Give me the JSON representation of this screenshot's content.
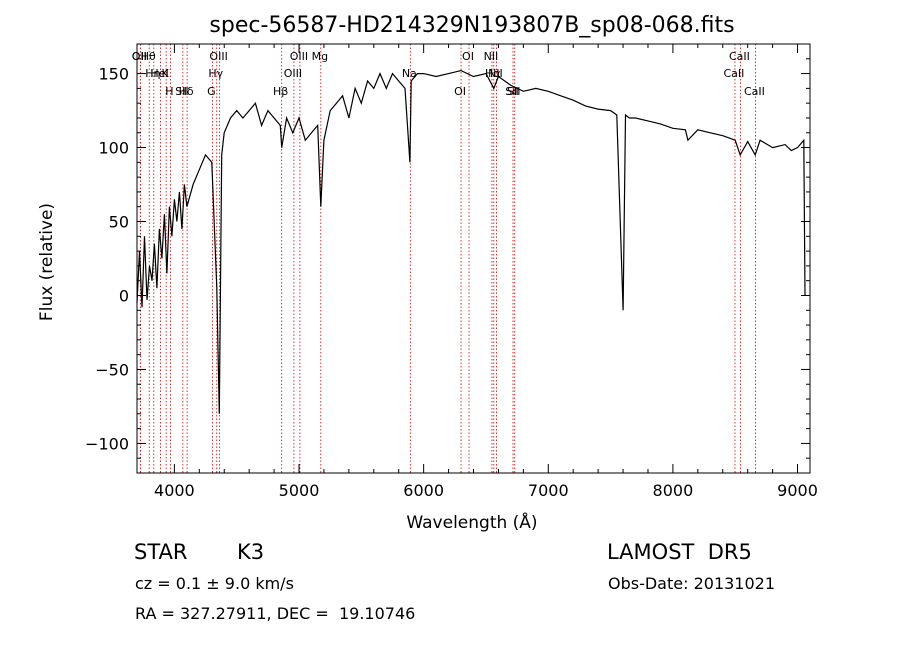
{
  "chart_data": {
    "type": "line",
    "title": "spec-56587-HD214329N193807B_sp08-068.fits",
    "xlabel": "Wavelength (Å)",
    "ylabel": "Flux (relative)",
    "xlim": [
      3700,
      9100
    ],
    "ylim": [
      -120,
      170
    ],
    "xticks": [
      4000,
      5000,
      6000,
      7000,
      8000,
      9000
    ],
    "yticks": [
      -100,
      -50,
      0,
      50,
      100,
      150
    ],
    "grid": false,
    "line_color": "#000000",
    "marker_color": "#cc0000",
    "spectrum": {
      "x": [
        3700,
        3720,
        3740,
        3760,
        3780,
        3800,
        3820,
        3840,
        3860,
        3880,
        3900,
        3920,
        3940,
        3960,
        3980,
        4000,
        4020,
        4040,
        4060,
        4080,
        4100,
        4150,
        4200,
        4250,
        4300,
        4340,
        4360,
        4380,
        4400,
        4450,
        4500,
        4550,
        4600,
        4650,
        4700,
        4750,
        4800,
        4850,
        4861,
        4900,
        4950,
        5000,
        5050,
        5100,
        5150,
        5175,
        5200,
        5250,
        5300,
        5350,
        5400,
        5450,
        5500,
        5550,
        5600,
        5650,
        5700,
        5750,
        5800,
        5850,
        5890,
        5900,
        5950,
        6000,
        6100,
        6200,
        6300,
        6400,
        6500,
        6563,
        6600,
        6700,
        6800,
        6900,
        7000,
        7100,
        7200,
        7300,
        7400,
        7500,
        7550,
        7600,
        7620,
        7650,
        7700,
        7800,
        7900,
        8000,
        8100,
        8120,
        8200,
        8300,
        8400,
        8500,
        8540,
        8600,
        8660,
        8700,
        8800,
        8900,
        8950,
        9000,
        9050,
        9060
      ],
      "y": [
        -5,
        30,
        -8,
        40,
        -3,
        20,
        10,
        35,
        5,
        45,
        25,
        55,
        15,
        60,
        40,
        65,
        50,
        70,
        45,
        75,
        60,
        75,
        85,
        95,
        90,
        5,
        -80,
        95,
        110,
        120,
        125,
        120,
        125,
        130,
        115,
        125,
        120,
        115,
        100,
        120,
        110,
        120,
        105,
        110,
        115,
        60,
        105,
        125,
        130,
        135,
        120,
        140,
        130,
        145,
        140,
        150,
        140,
        150,
        145,
        140,
        90,
        145,
        150,
        150,
        148,
        150,
        152,
        148,
        150,
        140,
        148,
        142,
        138,
        140,
        138,
        135,
        132,
        128,
        126,
        125,
        122,
        -10,
        122,
        120,
        120,
        118,
        116,
        113,
        112,
        105,
        112,
        110,
        108,
        105,
        95,
        104,
        95,
        105,
        100,
        102,
        98,
        100,
        105,
        0
      ]
    },
    "line_labels": [
      {
        "text": "Hθ",
        "x": 3798
      },
      {
        "text": "K",
        "x": 3934
      },
      {
        "text": "Hδ",
        "x": 4102
      },
      {
        "text": "OII",
        "x": 3727
      },
      {
        "text": "HeI",
        "x": 3889
      },
      {
        "text": "SII",
        "x": 4068
      },
      {
        "text": "OII",
        "x": 3727
      },
      {
        "text": "Hη",
        "x": 3835
      },
      {
        "text": "H",
        "x": 3968
      },
      {
        "text": "OIII",
        "x": 4363
      },
      {
        "text": "Hγ",
        "x": 4340
      },
      {
        "text": "G",
        "x": 4305
      },
      {
        "text": "OIII",
        "x": 5007
      },
      {
        "text": "OIII",
        "x": 4959
      },
      {
        "text": "Hβ",
        "x": 4861
      },
      {
        "text": "Mg",
        "x": 5175
      },
      {
        "text": "Na",
        "x": 5893
      },
      {
        "text": "OI",
        "x": 6300
      },
      {
        "text": "OI",
        "x": 6364
      },
      {
        "text": "Hα",
        "x": 6563
      },
      {
        "text": "SII",
        "x": 6717
      },
      {
        "text": "NII",
        "x": 6548
      },
      {
        "text": "NII",
        "x": 6584
      },
      {
        "text": "SII",
        "x": 6731
      },
      {
        "text": "CaII",
        "x": 8542
      },
      {
        "text": "CaII",
        "x": 8498
      },
      {
        "text": "CaII",
        "x": 8662
      }
    ]
  },
  "info": {
    "object_class": "STAR",
    "subclass": "K3",
    "survey": "LAMOST  DR5",
    "cz": "cz = 0.1 ± 9.0 km/s",
    "obs_date": "Obs-Date: 20131021",
    "coords": "RA = 327.27911, DEC =  19.10746"
  }
}
